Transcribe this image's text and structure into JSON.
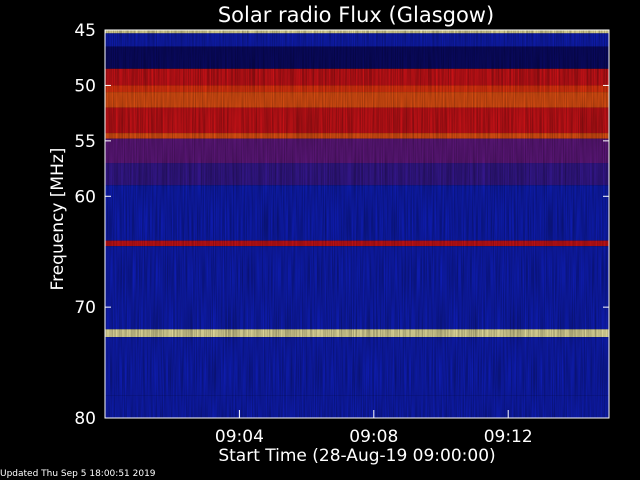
{
  "chart_data": {
    "type": "heatmap",
    "title": "Solar radio Flux (Glasgow)",
    "ylabel": "Frequency [MHz]",
    "xlabel": "Start Time (28-Aug-19 09:00:00)",
    "y_ticks": [
      "45",
      "50",
      "55",
      "60",
      "70",
      "80"
    ],
    "x_ticks": [
      "09:04",
      "09:08",
      "09:12"
    ],
    "ylim": [
      45,
      80
    ],
    "xlim_minutes": [
      0,
      15
    ],
    "colors": {
      "background": "#000000",
      "low": "#0a14c8",
      "mid": "#e01010",
      "high": "#ffffa0",
      "frame": "#ffffff"
    },
    "bands": [
      {
        "freq_from": 45.0,
        "freq_to": 45.3,
        "level": "high"
      },
      {
        "freq_from": 45.3,
        "freq_to": 46.5,
        "level": "low"
      },
      {
        "freq_from": 46.5,
        "freq_to": 48.5,
        "level": "dark-blue"
      },
      {
        "freq_from": 48.5,
        "freq_to": 50.0,
        "level": "mid"
      },
      {
        "freq_from": 50.0,
        "freq_to": 50.6,
        "level": "mid-bright"
      },
      {
        "freq_from": 50.6,
        "freq_to": 52.0,
        "level": "bright"
      },
      {
        "freq_from": 52.0,
        "freq_to": 54.3,
        "level": "mid"
      },
      {
        "freq_from": 54.3,
        "freq_to": 54.8,
        "level": "bright"
      },
      {
        "freq_from": 54.8,
        "freq_to": 57.0,
        "level": "purple"
      },
      {
        "freq_from": 57.0,
        "freq_to": 59.0,
        "level": "low-purple"
      },
      {
        "freq_from": 59.0,
        "freq_to": 64.0,
        "level": "low"
      },
      {
        "freq_from": 64.0,
        "freq_to": 64.5,
        "level": "mid"
      },
      {
        "freq_from": 64.5,
        "freq_to": 72.0,
        "level": "low"
      },
      {
        "freq_from": 72.0,
        "freq_to": 72.7,
        "level": "high"
      },
      {
        "freq_from": 72.7,
        "freq_to": 78.0,
        "level": "low"
      },
      {
        "freq_from": 78.0,
        "freq_to": 80.0,
        "level": "low"
      }
    ]
  },
  "footer": {
    "updated": "Updated Thu Sep  5 18:00:51 2019"
  }
}
